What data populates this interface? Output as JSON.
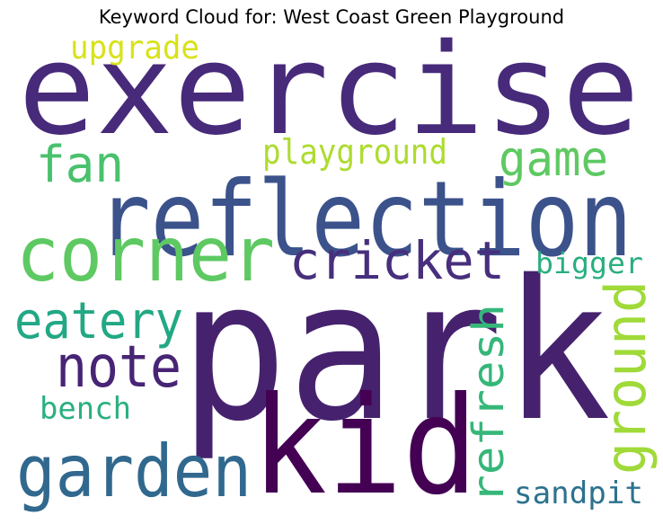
{
  "chart_data": {
    "type": "wordcloud",
    "title": "Keyword Cloud for: West Coast Green Playground",
    "words": [
      {
        "text": "park",
        "rank": 1,
        "color": "#46226e"
      },
      {
        "text": "exercise",
        "rank": 2,
        "color": "#472a7a"
      },
      {
        "text": "kid",
        "rank": 3,
        "color": "#440154"
      },
      {
        "text": "reflection",
        "rank": 4,
        "color": "#3b528b"
      },
      {
        "text": "corner",
        "rank": 5,
        "color": "#5ec962"
      },
      {
        "text": "garden",
        "rank": 6,
        "color": "#31688e"
      },
      {
        "text": "cricket",
        "rank": 7,
        "color": "#472f7d"
      },
      {
        "text": "ground",
        "rank": 8,
        "color": "#a0da39"
      },
      {
        "text": "note",
        "rank": 9,
        "color": "#482475"
      },
      {
        "text": "refresh",
        "rank": 10,
        "color": "#35b779"
      },
      {
        "text": "fan",
        "rank": 11,
        "color": "#4ac16d"
      },
      {
        "text": "game",
        "rank": 12,
        "color": "#5ec962"
      },
      {
        "text": "eatery",
        "rank": 13,
        "color": "#22a884"
      },
      {
        "text": "upgrade",
        "rank": 14,
        "color": "#d8e219"
      },
      {
        "text": "playground",
        "rank": 15,
        "color": "#addc30"
      },
      {
        "text": "sandpit",
        "rank": 16,
        "color": "#2c728e"
      },
      {
        "text": "bigger",
        "rank": 17,
        "color": "#29af7f"
      },
      {
        "text": "bench",
        "rank": 18,
        "color": "#2ab07f"
      }
    ]
  }
}
